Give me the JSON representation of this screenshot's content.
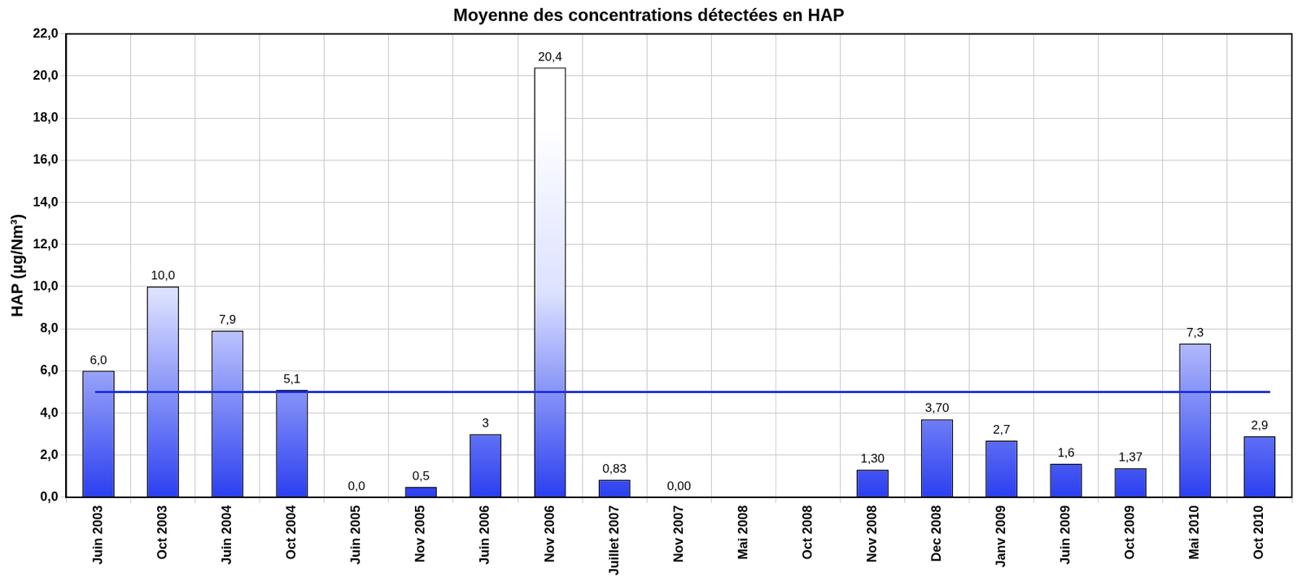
{
  "chart_data": {
    "type": "bar",
    "title": "Moyenne des concentrations détectées en HAP",
    "y_label": "HAP (µg/Nm³)",
    "categories": [
      "Juin 2003",
      "Oct 2003",
      "Juin 2004",
      "Oct 2004",
      "Juin 2005",
      "Nov 2005",
      "Juin 2006",
      "Nov 2006",
      "Juillet 2007",
      "Nov 2007",
      "Mai 2008",
      "Oct 2008",
      "Nov 2008",
      "Dec 2008",
      "Janv 2009",
      "Juin 2009",
      "Oct 2009",
      "Mai 2010",
      "Oct 2010"
    ],
    "values": [
      6.0,
      10.0,
      7.9,
      5.1,
      0.0,
      0.5,
      3,
      20.4,
      0.83,
      0.0,
      null,
      null,
      1.3,
      3.7,
      2.7,
      1.6,
      1.37,
      7.3,
      2.9
    ],
    "value_labels": [
      "6,0",
      "10,0",
      "7,9",
      "5,1",
      "0,0",
      "0,5",
      "3",
      "20,4",
      "0,83",
      "0,00",
      null,
      null,
      "1,30",
      "3,70",
      "2,7",
      "1,6",
      "1,37",
      "7,3",
      "2,9"
    ],
    "data_labels": true,
    "threshold": 5,
    "color": "#2b3ff0",
    "ylim": [
      0,
      22
    ],
    "yticks": [
      {
        "value": 0,
        "label": "0,0"
      },
      {
        "value": 2,
        "label": "2,0"
      },
      {
        "value": 4,
        "label": "4,0"
      },
      {
        "value": 6,
        "label": "6,0"
      },
      {
        "value": 8,
        "label": "8,0"
      },
      {
        "value": 10,
        "label": "10,0"
      },
      {
        "value": 12,
        "label": "12,0"
      },
      {
        "value": 14,
        "label": "14,0"
      },
      {
        "value": 16,
        "label": "16,0"
      },
      {
        "value": 18,
        "label": "18,0"
      },
      {
        "value": 20,
        "label": "20,0"
      },
      {
        "value": 22,
        "label": "22,0"
      }
    ],
    "grid": true
  }
}
